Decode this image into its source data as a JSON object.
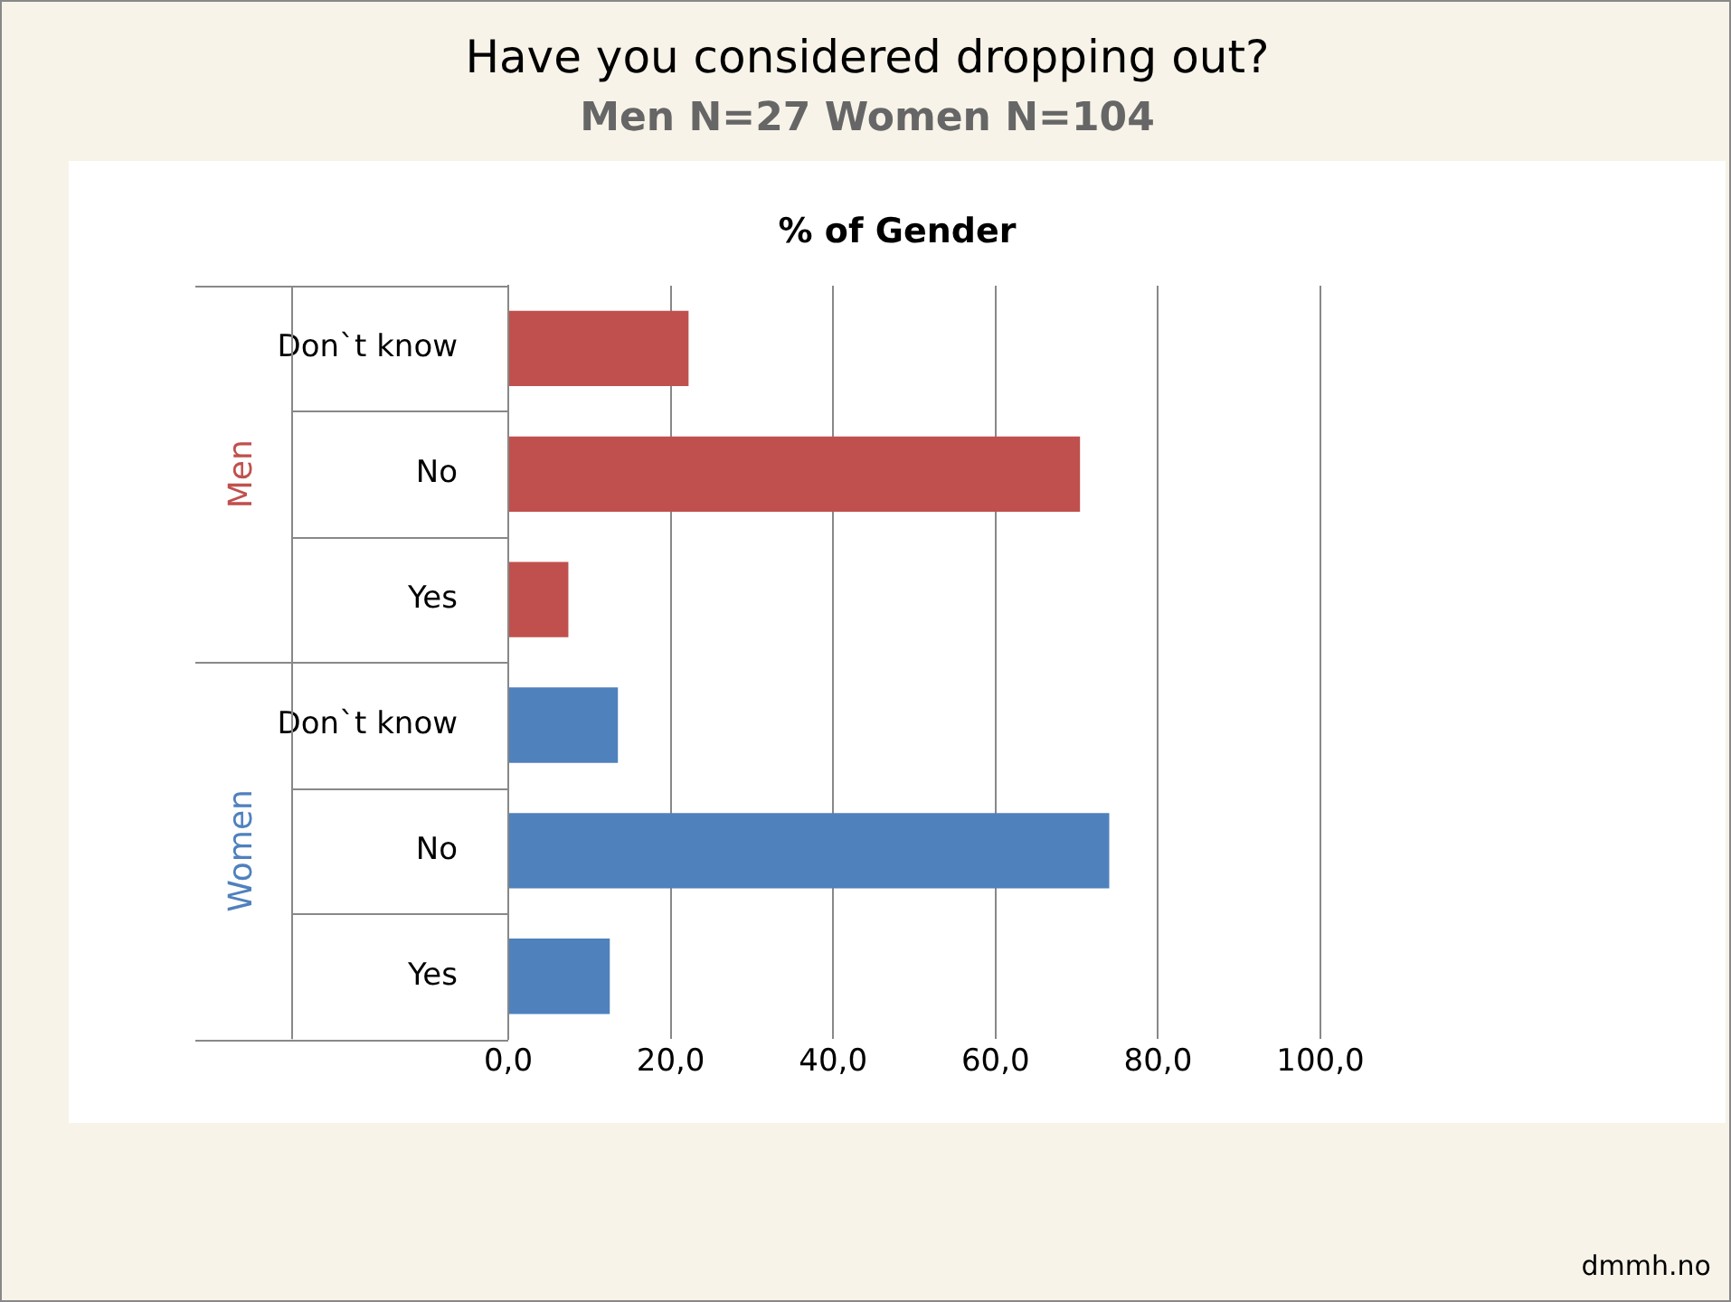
{
  "chart_data": {
    "type": "bar",
    "orientation": "horizontal",
    "title": "Have you considered dropping out?",
    "subtitle": "Men N=27 Women N=104",
    "annotations": [
      "% of Gender",
      "dmmh.no"
    ],
    "categories": [
      "Don`t know",
      "No",
      "Yes",
      "Don`t know",
      "No",
      "Yes"
    ],
    "series": [
      {
        "name": "Men",
        "color": "#c0504d",
        "values": [
          22.2,
          70.4,
          7.4,
          null,
          null,
          null
        ]
      },
      {
        "name": "Women",
        "color": "#4f81bd",
        "values": [
          null,
          null,
          null,
          13.5,
          74.0,
          12.5
        ]
      }
    ],
    "xlim": [
      0,
      100
    ],
    "xticks": [
      {
        "value": 0,
        "label": "0,0"
      },
      {
        "value": 20,
        "label": "20,0"
      },
      {
        "value": 40,
        "label": "40,0"
      },
      {
        "value": 60,
        "label": "60,0"
      },
      {
        "value": 80,
        "label": "80,0"
      },
      {
        "value": 100,
        "label": "100,0"
      }
    ],
    "grid": "x",
    "legend": false
  }
}
